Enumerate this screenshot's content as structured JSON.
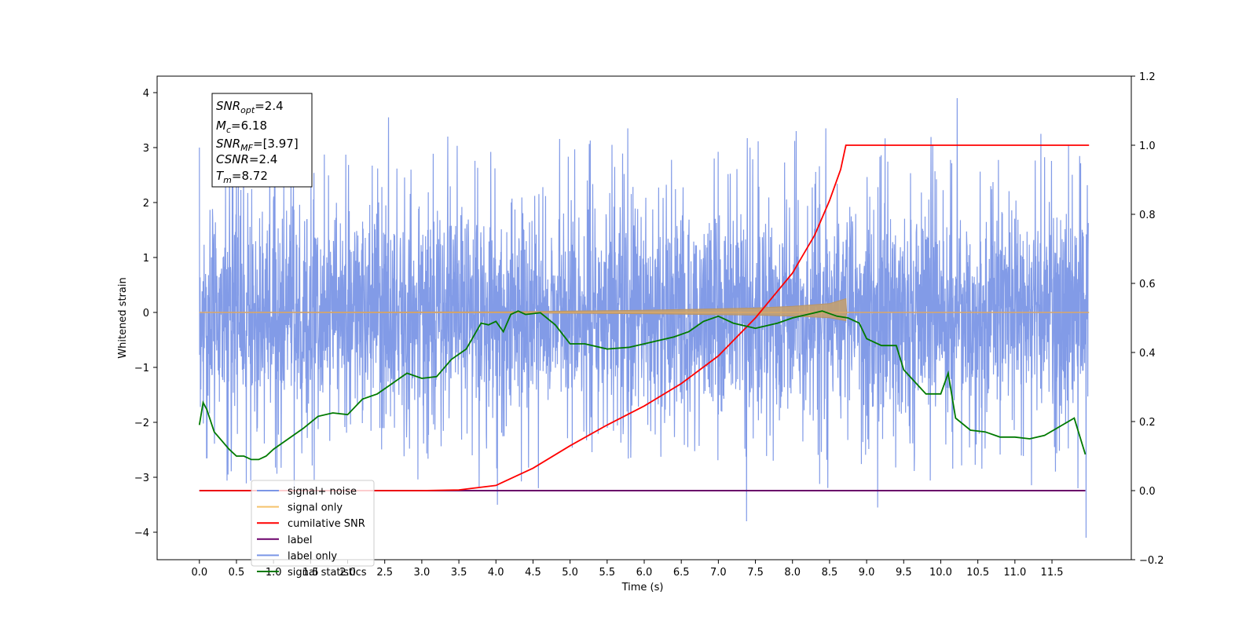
{
  "chart_data": {
    "type": "line",
    "xlabel": "Time (s)",
    "ylabel": "Whitened strain",
    "xlim": [
      -0.57,
      12.57
    ],
    "ylim": [
      -4.5,
      4.3
    ],
    "y2lim": [
      -0.2,
      1.2
    ],
    "x_ticks": [
      "0.0",
      "0.5",
      "1.0",
      "1.5",
      "2.0",
      "2.5",
      "3.0",
      "3.5",
      "4.0",
      "4.5",
      "5.0",
      "5.5",
      "6.0",
      "6.5",
      "7.0",
      "7.5",
      "8.0",
      "8.5",
      "9.0",
      "9.5",
      "10.0",
      "10.5",
      "11.0",
      "11.5"
    ],
    "y_ticks": [
      "4",
      "3",
      "2",
      "1",
      "0",
      "−1",
      "−2",
      "−3",
      "−4"
    ],
    "y2_ticks": [
      "1.2",
      "1.0",
      "0.8",
      "0.6",
      "0.4",
      "0.2",
      "0.0",
      "−0.2"
    ],
    "grid": false,
    "legend_position": "lower-left",
    "legend": [
      {
        "label": "signal+ noise",
        "color": "#7b96e6"
      },
      {
        "label": "signal only",
        "color": "#f5c26b"
      },
      {
        "label": "cumilative SNR",
        "color": "#ff0000"
      },
      {
        "label": "label",
        "color": "#6a006a"
      },
      {
        "label": "label only",
        "color": "#7b96e6"
      },
      {
        "label": "signal statistics",
        "color": "#007a00"
      }
    ],
    "info_box": {
      "snr_opt": {
        "base": "SNR",
        "sub": "opt",
        "value": "=2.4"
      },
      "mc": {
        "base": "M",
        "sub": "c",
        "value": "=6.18"
      },
      "snr_mf": {
        "base": "SNR",
        "sub": "MF",
        "value": "=[3.97]"
      },
      "csnr": {
        "base": "CSNR",
        "value": "=2.4"
      },
      "tm": {
        "base": "T",
        "sub": "m",
        "value": "=8.72"
      }
    },
    "series": [
      {
        "name": "signal+ noise",
        "axis": "left",
        "color": "#7b96e6",
        "note_range": {
          "x_start": 0.0,
          "x_end": 11.99,
          "typical_band": [
            -1.6,
            1.6
          ],
          "peaks_max": 3.9,
          "peaks_min": -4.1
        },
        "x": [
          0.0,
          0.02,
          0.45,
          0.5,
          1.28,
          2.55,
          3.35,
          4.02,
          5.78,
          7.38,
          8.05,
          8.45,
          9.15,
          10.22,
          11.35,
          11.85,
          11.96
        ],
        "y": [
          3.0,
          -1.4,
          3.4,
          3.1,
          -3.4,
          3.55,
          3.2,
          -3.5,
          3.35,
          -3.8,
          3.3,
          3.35,
          -3.55,
          3.9,
          3.25,
          -3.2,
          -4.1
        ]
      },
      {
        "name": "signal only",
        "axis": "left",
        "color": "#f5c26b",
        "x": [
          0.0,
          4.0,
          6.0,
          7.5,
          8.0,
          8.5,
          8.72,
          8.73,
          12.0
        ],
        "amplitude": [
          0.0,
          0.01,
          0.04,
          0.08,
          0.11,
          0.16,
          0.25,
          0.0,
          0.0
        ]
      },
      {
        "name": "cumilative SNR",
        "axis": "right",
        "color": "#ff0000",
        "x": [
          0.0,
          3.0,
          3.5,
          4.0,
          4.5,
          5.0,
          5.5,
          6.0,
          6.5,
          7.0,
          7.5,
          8.0,
          8.3,
          8.5,
          8.65,
          8.72,
          12.0
        ],
        "y": [
          0.0,
          0.0,
          0.002,
          0.015,
          0.065,
          0.13,
          0.19,
          0.245,
          0.31,
          0.39,
          0.5,
          0.63,
          0.74,
          0.84,
          0.93,
          1.0,
          1.0
        ]
      },
      {
        "name": "label",
        "axis": "right",
        "color": "#6a006a",
        "x": [
          0.0,
          11.95
        ],
        "y": [
          0.0,
          0.0
        ]
      },
      {
        "name": "signal statistics",
        "axis": "right",
        "color": "#007a00",
        "x": [
          0.0,
          0.05,
          0.1,
          0.2,
          0.3,
          0.4,
          0.5,
          0.6,
          0.7,
          0.8,
          0.9,
          1.0,
          1.2,
          1.4,
          1.6,
          1.8,
          2.0,
          2.2,
          2.4,
          2.6,
          2.8,
          3.0,
          3.2,
          3.4,
          3.6,
          3.8,
          3.9,
          4.0,
          4.1,
          4.2,
          4.3,
          4.4,
          4.6,
          4.8,
          5.0,
          5.2,
          5.5,
          5.8,
          6.0,
          6.2,
          6.4,
          6.6,
          6.8,
          7.0,
          7.2,
          7.5,
          7.8,
          8.0,
          8.2,
          8.4,
          8.6,
          8.75,
          8.9,
          9.0,
          9.2,
          9.4,
          9.5,
          9.8,
          10.0,
          10.1,
          10.2,
          10.4,
          10.6,
          10.8,
          11.0,
          11.2,
          11.4,
          11.6,
          11.8,
          11.95
        ],
        "y": [
          0.19,
          0.255,
          0.235,
          0.17,
          0.145,
          0.12,
          0.1,
          0.1,
          0.09,
          0.09,
          0.1,
          0.12,
          0.15,
          0.18,
          0.215,
          0.225,
          0.22,
          0.265,
          0.28,
          0.31,
          0.34,
          0.325,
          0.33,
          0.38,
          0.41,
          0.485,
          0.48,
          0.49,
          0.46,
          0.51,
          0.52,
          0.51,
          0.515,
          0.48,
          0.425,
          0.425,
          0.41,
          0.415,
          0.425,
          0.435,
          0.445,
          0.46,
          0.49,
          0.505,
          0.485,
          0.47,
          0.485,
          0.5,
          0.51,
          0.52,
          0.505,
          0.5,
          0.485,
          0.44,
          0.42,
          0.42,
          0.35,
          0.28,
          0.28,
          0.34,
          0.21,
          0.175,
          0.17,
          0.155,
          0.155,
          0.15,
          0.16,
          0.185,
          0.21,
          0.105
        ]
      }
    ]
  }
}
